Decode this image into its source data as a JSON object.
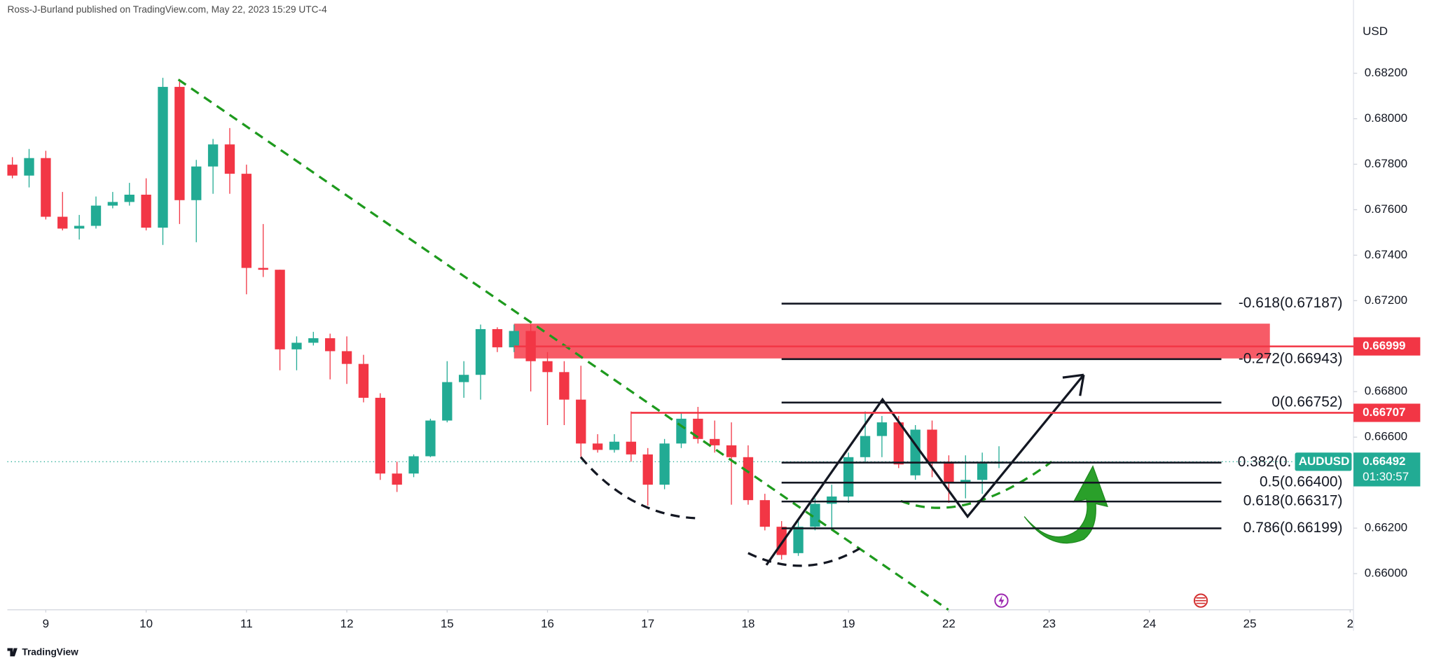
{
  "header": "Ross-J-Burland published on TradingView.com, May 22, 2023 15:29 UTC-4",
  "footer": "TradingView",
  "chart_data": {
    "type": "candlestick",
    "symbol": "AUDUSD",
    "currency": "USD",
    "up_color": "#22ab94",
    "down_color": "#f23645",
    "x": [
      0,
      1,
      2,
      3,
      4,
      5,
      6,
      7,
      8,
      9,
      10,
      11,
      12,
      13,
      14,
      15,
      16,
      17,
      18,
      19,
      20,
      21,
      22,
      23,
      24,
      25,
      26,
      27,
      28,
      29,
      30,
      31,
      32,
      33,
      34,
      35,
      36,
      37,
      38,
      39,
      40,
      41,
      42,
      43,
      44,
      45,
      46,
      47,
      48,
      49,
      50,
      51,
      52,
      53,
      54,
      55,
      56,
      57,
      58,
      59
    ],
    "open": [
      0.67798,
      0.6775,
      0.67827,
      0.67569,
      0.67517,
      0.67529,
      0.67618,
      0.67634,
      0.67666,
      0.67521,
      0.6814,
      0.67642,
      0.6779,
      0.67887,
      0.67758,
      0.67344,
      0.67336,
      0.66986,
      0.67015,
      0.67035,
      0.66978,
      0.66922,
      0.66773,
      0.6644,
      0.6644,
      0.66516,
      0.66673,
      0.66842,
      0.66874,
      0.67075,
      0.66995,
      0.67067,
      0.66934,
      0.66886,
      0.66765,
      0.66572,
      0.66544,
      0.6658,
      0.66524,
      0.66391,
      0.66572,
      0.66681,
      0.66592,
      0.66564,
      0.66512,
      0.66323,
      0.66206,
      0.6609,
      0.66206,
      0.66307,
      0.66339,
      0.66512,
      0.66605,
      0.66665,
      0.66432,
      0.66633,
      0.66492,
      0.66403,
      0.66412,
      0.66484
    ],
    "high": [
      0.67831,
      0.67867,
      0.67859,
      0.67678,
      0.67577,
      0.67658,
      0.67678,
      0.67718,
      0.67738,
      0.6818,
      0.68168,
      0.67819,
      0.67911,
      0.67959,
      0.67798,
      0.67537,
      0.67336,
      0.67043,
      0.67063,
      0.67055,
      0.67043,
      0.66962,
      0.66793,
      0.66492,
      0.66524,
      0.66681,
      0.66934,
      0.66934,
      0.67095,
      0.67083,
      0.67095,
      0.67095,
      0.66974,
      0.66934,
      0.66914,
      0.66613,
      0.66613,
      0.66713,
      0.66552,
      0.66592,
      0.66705,
      0.66733,
      0.66673,
      0.66665,
      0.66564,
      0.66351,
      0.66231,
      0.66231,
      0.66331,
      0.66391,
      0.66532,
      0.66713,
      0.66693,
      0.66693,
      0.66653,
      0.66673,
      0.6652,
      0.6652,
      0.66532,
      0.6656
    ],
    "low": [
      0.67738,
      0.67698,
      0.67557,
      0.67509,
      0.67469,
      0.67517,
      0.67606,
      0.67618,
      0.67509,
      0.67445,
      0.67537,
      0.67457,
      0.6767,
      0.6767,
      0.67228,
      0.67304,
      0.66894,
      0.66894,
      0.67003,
      0.66854,
      0.66834,
      0.66753,
      0.66412,
      0.66359,
      0.66424,
      0.66512,
      0.66665,
      0.66773,
      0.66765,
      0.66974,
      0.66974,
      0.66801,
      0.66653,
      0.66653,
      0.66512,
      0.66532,
      0.66532,
      0.66492,
      0.66299,
      0.66371,
      0.66552,
      0.66572,
      0.66532,
      0.66303,
      0.66303,
      0.6619,
      0.66062,
      0.66078,
      0.6619,
      0.6619,
      0.66311,
      0.66492,
      0.66512,
      0.66464,
      0.66412,
      0.66424,
      0.66311,
      0.66331,
      0.66351,
      0.66464
    ],
    "close": [
      0.6775,
      0.67827,
      0.67569,
      0.67517,
      0.67529,
      0.67618,
      0.67634,
      0.67666,
      0.67521,
      0.6814,
      0.67642,
      0.6779,
      0.67887,
      0.67758,
      0.67344,
      0.67336,
      0.66986,
      0.67015,
      0.67035,
      0.66978,
      0.66922,
      0.66773,
      0.6644,
      0.66391,
      0.66516,
      0.66673,
      0.66842,
      0.66874,
      0.67075,
      0.66995,
      0.67067,
      0.66934,
      0.66886,
      0.66765,
      0.66572,
      0.66544,
      0.6658,
      0.66524,
      0.66391,
      0.66572,
      0.66681,
      0.66592,
      0.66564,
      0.66512,
      0.66323,
      0.66206,
      0.66082,
      0.66206,
      0.66307,
      0.66339,
      0.66512,
      0.66605,
      0.66665,
      0.6648,
      0.66633,
      0.66492,
      0.66403,
      0.66412,
      0.66484,
      0.66492
    ],
    "xlim": [
      -0.3,
      80.2
    ],
    "xticks": [
      {
        "value": 2,
        "label": "9"
      },
      {
        "value": 8,
        "label": "10"
      },
      {
        "value": 14,
        "label": "11"
      },
      {
        "value": 20,
        "label": "12"
      },
      {
        "value": 26,
        "label": "15"
      },
      {
        "value": 32,
        "label": "16"
      },
      {
        "value": 38,
        "label": "17"
      },
      {
        "value": 44,
        "label": "18"
      },
      {
        "value": 50,
        "label": "19"
      },
      {
        "value": 56,
        "label": "22"
      },
      {
        "value": 62,
        "label": "23"
      },
      {
        "value": 68,
        "label": "24"
      },
      {
        "value": 74,
        "label": "25"
      },
      {
        "value": 80,
        "label": "2"
      }
    ],
    "ylim": [
      0.65841,
      0.68522
    ],
    "yticks": [
      {
        "value": 0.66,
        "label": "0.66000"
      },
      {
        "value": 0.662,
        "label": "0.66200"
      },
      {
        "value": 0.666,
        "label": "0.66600"
      },
      {
        "value": 0.668,
        "label": "0.66800"
      },
      {
        "value": 0.672,
        "label": "0.67200"
      },
      {
        "value": 0.674,
        "label": "0.67400"
      },
      {
        "value": 0.676,
        "label": "0.67600"
      },
      {
        "value": 0.678,
        "label": "0.67800"
      },
      {
        "value": 0.68,
        "label": "0.68000"
      },
      {
        "value": 0.682,
        "label": "0.68200"
      }
    ],
    "zone": {
      "x": [
        30,
        75.2
      ],
      "y": [
        0.66946,
        0.67099
      ],
      "color": "#f7525f"
    },
    "price_lines": [
      {
        "value": 0.66999,
        "x0": 30
      },
      {
        "value": 0.66707,
        "x0": 37
      }
    ],
    "fib_x": [
      46,
      72.3
    ],
    "fib_levels": [
      {
        "value": 0.67187,
        "label": "-0.618(0.67187)"
      },
      {
        "value": 0.66943,
        "label": "-0.272(0.66943)"
      },
      {
        "value": 0.66752,
        "label": "0(0.66752)"
      },
      {
        "value": 0.66488,
        "label": "0.382(0."
      },
      {
        "value": 0.664,
        "label": "0.5(0.66400)"
      },
      {
        "value": 0.66317,
        "label": "0.618(0.66317)"
      },
      {
        "value": 0.66199,
        "label": "0.786(0.66199)"
      }
    ],
    "last_price": 0.66492,
    "countdown": "01:30:57"
  }
}
